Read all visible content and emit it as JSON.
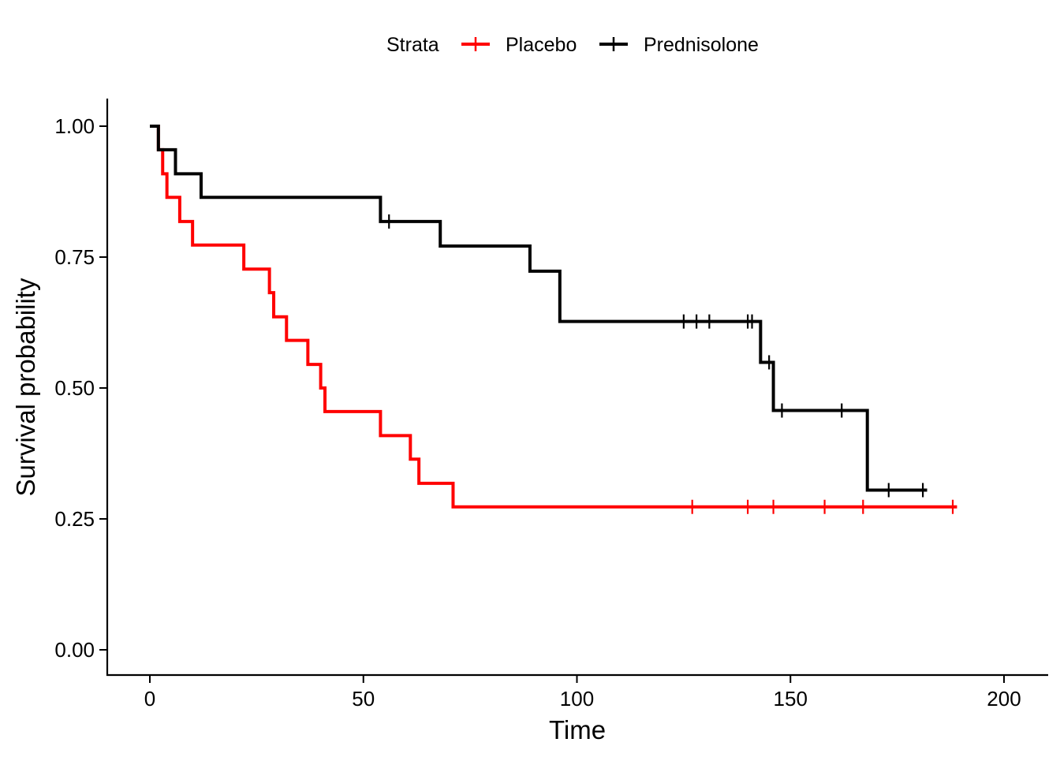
{
  "chart_data": {
    "type": "line",
    "subtype": "kaplan-meier step",
    "title": "",
    "xlabel": "Time",
    "ylabel": "Survival probability",
    "xlim": [
      -10,
      210
    ],
    "ylim": [
      -0.05,
      1.05
    ],
    "xticks": [
      0,
      50,
      100,
      150,
      200
    ],
    "xtick_labels": [
      "0",
      "50",
      "100",
      "150",
      "200"
    ],
    "yticks": [
      0,
      0.25,
      0.5,
      0.75,
      1.0
    ],
    "ytick_labels": [
      "0.00",
      "0.25",
      "0.50",
      "0.75",
      "1.00"
    ],
    "grid": false,
    "legend": {
      "title": "Strata",
      "placement": "top"
    },
    "series": [
      {
        "name": "Placebo",
        "color": "#FF0000",
        "steps": [
          [
            0,
            1.0
          ],
          [
            2,
            0.955
          ],
          [
            3,
            0.909
          ],
          [
            4,
            0.864
          ],
          [
            7,
            0.818
          ],
          [
            10,
            0.773
          ],
          [
            22,
            0.727
          ],
          [
            28,
            0.682
          ],
          [
            29,
            0.636
          ],
          [
            32,
            0.591
          ],
          [
            37,
            0.545
          ],
          [
            40,
            0.5
          ],
          [
            41,
            0.455
          ],
          [
            54,
            0.409
          ],
          [
            61,
            0.364
          ],
          [
            63,
            0.318
          ],
          [
            71,
            0.273
          ]
        ],
        "end_time": 189,
        "censor_times": [
          127,
          140,
          146,
          158,
          167,
          188
        ]
      },
      {
        "name": "Prednisolone",
        "color": "#000000",
        "steps": [
          [
            0,
            1.0
          ],
          [
            2,
            0.955
          ],
          [
            6,
            0.909
          ],
          [
            12,
            0.864
          ],
          [
            54,
            0.818
          ],
          [
            68,
            0.771
          ],
          [
            89,
            0.723
          ],
          [
            96,
            0.627
          ],
          [
            143,
            0.549
          ],
          [
            146,
            0.457
          ],
          [
            168,
            0.305
          ]
        ],
        "end_time": 182,
        "censor_times": [
          56,
          125,
          128,
          131,
          140,
          141,
          145,
          148,
          162,
          173,
          181
        ]
      }
    ]
  }
}
